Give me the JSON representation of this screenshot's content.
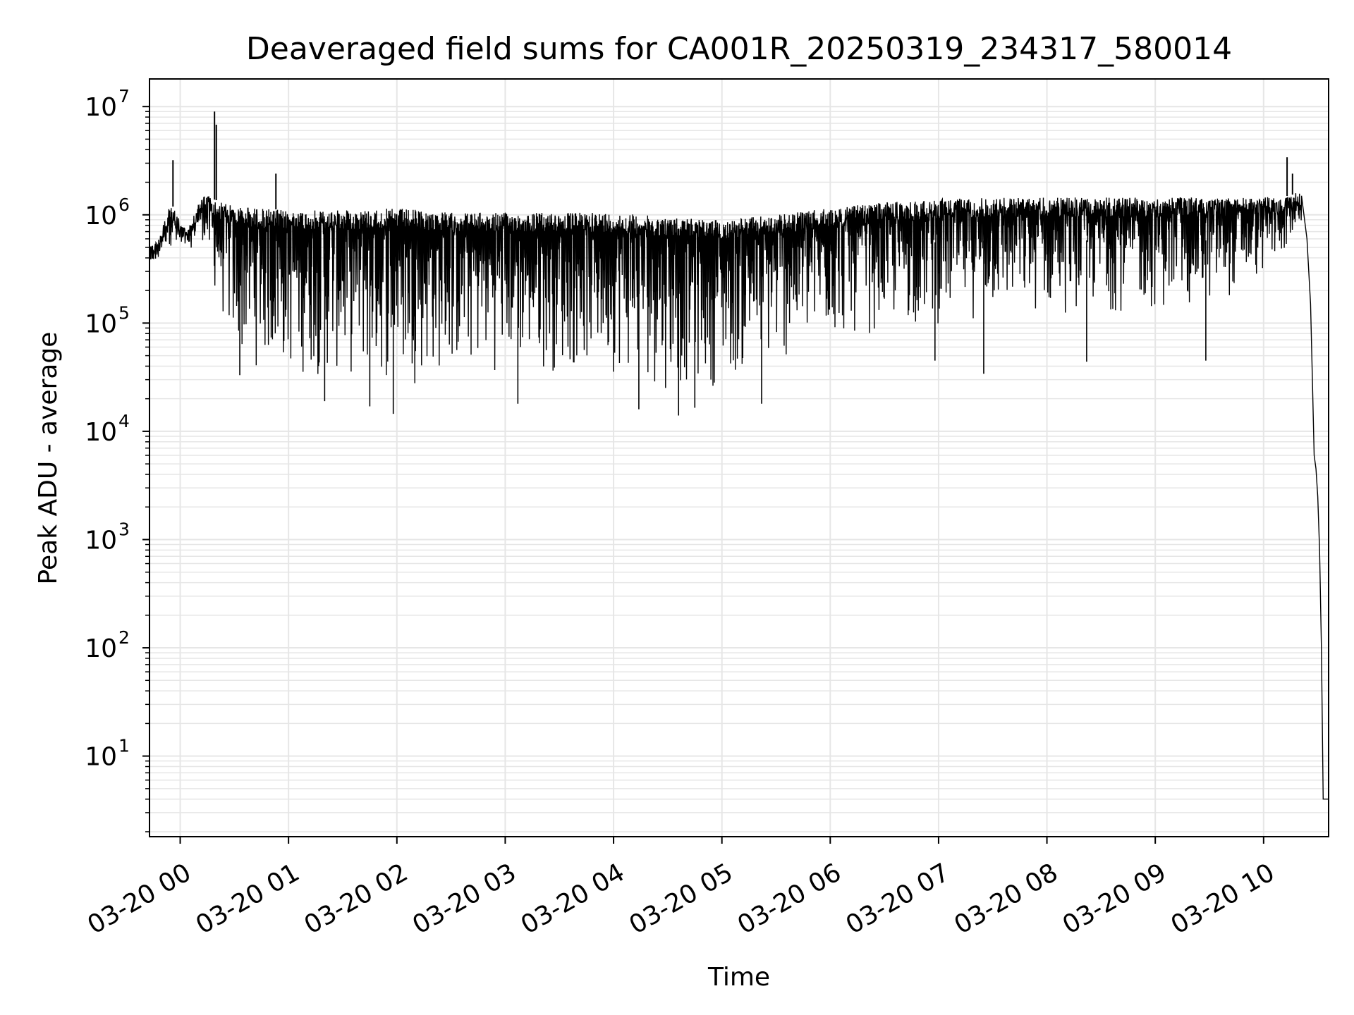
{
  "chart_data": {
    "type": "line",
    "title": "Deaveraged field sums for CA001R_20250319_234317_580014",
    "xlabel": "Time",
    "ylabel": "Peak ADU - average",
    "yscale": "log",
    "ylim": [
      1.8,
      18000000
    ],
    "xlim": [
      "2025-03-19 23:43",
      "2025-03-20 10:36"
    ],
    "grid": true,
    "line_color": "#000000",
    "grid_color": "#e6e6e6",
    "x_ticks": [
      {
        "at": "2025-03-20 00:00",
        "label": "03-20 00"
      },
      {
        "at": "2025-03-20 01:00",
        "label": "03-20 01"
      },
      {
        "at": "2025-03-20 02:00",
        "label": "03-20 02"
      },
      {
        "at": "2025-03-20 03:00",
        "label": "03-20 03"
      },
      {
        "at": "2025-03-20 04:00",
        "label": "03-20 04"
      },
      {
        "at": "2025-03-20 05:00",
        "label": "03-20 05"
      },
      {
        "at": "2025-03-20 06:00",
        "label": "03-20 06"
      },
      {
        "at": "2025-03-20 07:00",
        "label": "03-20 07"
      },
      {
        "at": "2025-03-20 08:00",
        "label": "03-20 08"
      },
      {
        "at": "2025-03-20 09:00",
        "label": "03-20 09"
      },
      {
        "at": "2025-03-20 10:00",
        "label": "03-20 10"
      }
    ],
    "y_ticks": [
      {
        "value": 10,
        "base": "10",
        "exp": "1"
      },
      {
        "value": 100,
        "base": "10",
        "exp": "2"
      },
      {
        "value": 1000,
        "base": "10",
        "exp": "3"
      },
      {
        "value": 10000,
        "base": "10",
        "exp": "4"
      },
      {
        "value": 100000,
        "base": "10",
        "exp": "5"
      },
      {
        "value": 1000000,
        "base": "10",
        "exp": "6"
      },
      {
        "value": 10000000,
        "base": "10",
        "exp": "7"
      }
    ],
    "series": [
      {
        "upper_envelope": {
          "x": [
            "2025-03-19 23:43",
            "2025-03-19 23:48",
            "2025-03-19 23:52",
            "2025-03-19 23:55",
            "2025-03-19 23:58",
            "2025-03-20 00:04",
            "2025-03-20 00:10",
            "2025-03-20 00:14",
            "2025-03-20 00:18",
            "2025-03-20 00:30",
            "2025-03-20 01:00",
            "2025-03-20 01:30",
            "2025-03-20 02:00",
            "2025-03-20 02:30",
            "2025-03-20 03:00",
            "2025-03-20 03:30",
            "2025-03-20 04:00",
            "2025-03-20 04:30",
            "2025-03-20 05:00",
            "2025-03-20 05:30",
            "2025-03-20 06:00",
            "2025-03-20 06:30",
            "2025-03-20 07:00",
            "2025-03-20 07:30",
            "2025-03-20 08:00",
            "2025-03-20 08:30",
            "2025-03-20 09:00",
            "2025-03-20 09:30",
            "2025-03-20 10:00",
            "2025-03-20 10:15",
            "2025-03-20 10:20",
            "2025-03-20 10:25"
          ],
          "y": [
            500000,
            600000,
            1000000,
            1300000,
            1000000,
            700000,
            1300000,
            1600000,
            1400000,
            1200000,
            1100000,
            1100000,
            1150000,
            1050000,
            1050000,
            1050000,
            1050000,
            950000,
            900000,
            1000000,
            1150000,
            1300000,
            1400000,
            1450000,
            1450000,
            1450000,
            1450000,
            1450000,
            1450000,
            1500000,
            1700000,
            1500000
          ]
        },
        "lower_envelope": {
          "x": [
            "2025-03-19 23:43",
            "2025-03-19 23:50",
            "2025-03-19 23:55",
            "2025-03-19 23:58",
            "2025-03-20 00:04",
            "2025-03-20 00:12",
            "2025-03-20 00:20",
            "2025-03-20 00:30",
            "2025-03-20 01:00",
            "2025-03-20 01:30",
            "2025-03-20 02:00",
            "2025-03-20 02:30",
            "2025-03-20 03:00",
            "2025-03-20 03:30",
            "2025-03-20 04:00",
            "2025-03-20 04:30",
            "2025-03-20 05:00",
            "2025-03-20 05:30",
            "2025-03-20 06:00",
            "2025-03-20 06:30",
            "2025-03-20 07:00",
            "2025-03-20 07:30",
            "2025-03-20 08:00",
            "2025-03-20 08:30",
            "2025-03-20 09:00",
            "2025-03-20 09:30",
            "2025-03-20 10:00",
            "2025-03-20 10:15",
            "2025-03-20 10:20"
          ],
          "y": [
            400000,
            450000,
            500000,
            350000,
            450000,
            600000,
            150000,
            40000,
            30000,
            28000,
            25000,
            30000,
            35000,
            32000,
            33000,
            22000,
            25000,
            35000,
            60000,
            80000,
            90000,
            110000,
            110000,
            120000,
            120000,
            130000,
            250000,
            500000,
            700000
          ]
        },
        "spikes": [
          {
            "x": "2025-03-19 23:56",
            "y": 3200000
          },
          {
            "x": "2025-03-20 00:19",
            "y": 9000000
          },
          {
            "x": "2025-03-20 00:20",
            "y": 6800000
          },
          {
            "x": "2025-03-20 00:53",
            "y": 2400000
          },
          {
            "x": "2025-03-20 10:13",
            "y": 3400000
          },
          {
            "x": "2025-03-20 10:16",
            "y": 2400000
          }
        ],
        "dips": [
          {
            "x": "2025-03-20 00:33",
            "y": 33000
          },
          {
            "x": "2025-03-20 01:20",
            "y": 19000
          },
          {
            "x": "2025-03-20 01:45",
            "y": 17000
          },
          {
            "x": "2025-03-20 01:58",
            "y": 14500
          },
          {
            "x": "2025-03-20 03:07",
            "y": 18000
          },
          {
            "x": "2025-03-20 04:14",
            "y": 16000
          },
          {
            "x": "2025-03-20 04:36",
            "y": 14000
          },
          {
            "x": "2025-03-20 04:45",
            "y": 16500
          },
          {
            "x": "2025-03-20 05:22",
            "y": 18000
          },
          {
            "x": "2025-03-20 06:58",
            "y": 45000
          },
          {
            "x": "2025-03-20 07:25",
            "y": 34000
          },
          {
            "x": "2025-03-20 08:22",
            "y": 44000
          },
          {
            "x": "2025-03-20 09:28",
            "y": 45000
          }
        ],
        "decay": {
          "x": [
            "2025-03-20 10:21",
            "2025-03-20 10:24",
            "2025-03-20 10:26",
            "2025-03-20 10:27",
            "2025-03-20 10:28",
            "2025-03-20 10:29",
            "2025-03-20 10:30",
            "2025-03-20 10:31",
            "2025-03-20 10:32",
            "2025-03-20 10:33",
            "2025-03-20 10:36"
          ],
          "y": [
            1500000,
            600000,
            150000,
            30000,
            6000,
            4500,
            2500,
            800,
            100,
            4,
            4
          ]
        }
      }
    ]
  }
}
